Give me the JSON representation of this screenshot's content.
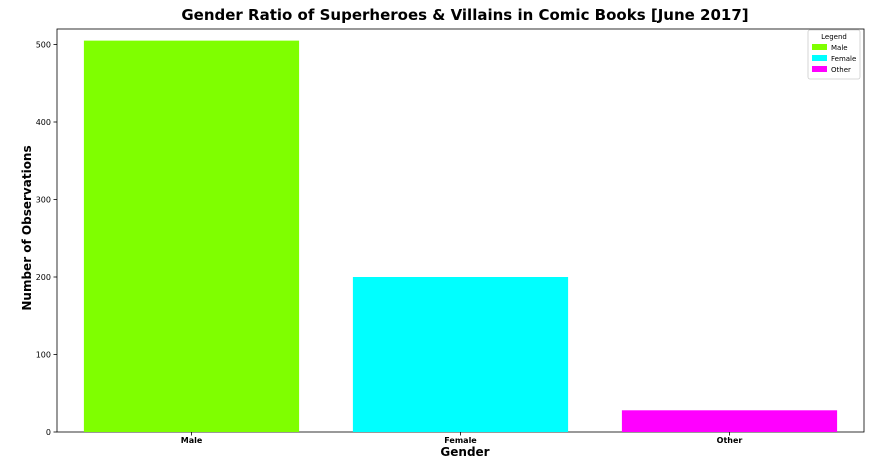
{
  "chart_data": {
    "type": "bar",
    "title": "Gender Ratio of Superheroes & Villains in Comic Books [June 2017]",
    "xlabel": "Gender",
    "ylabel": "Number of Observations",
    "categories": [
      "Male",
      "Female",
      "Other"
    ],
    "values": [
      505,
      200,
      28
    ],
    "colors": [
      "#7fff00",
      "#00ffff",
      "#ff00ff"
    ],
    "ylim": [
      0,
      520
    ],
    "yticks": [
      0,
      100,
      200,
      300,
      400,
      500
    ],
    "grid": false,
    "legend": {
      "title": "Legend",
      "placement": "top-right",
      "entries": [
        "Male",
        "Female",
        "Other"
      ]
    }
  }
}
